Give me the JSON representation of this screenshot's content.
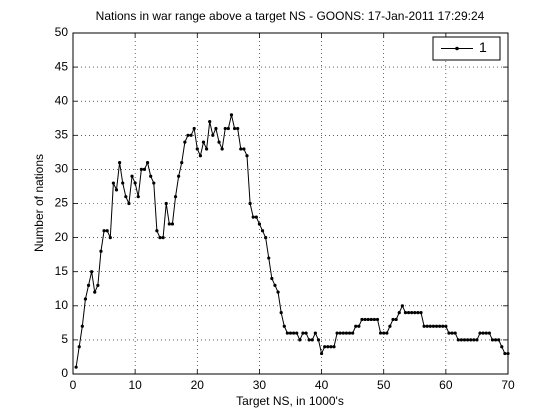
{
  "chart_data": {
    "type": "line",
    "title": "Nations in war range above a target NS - GOONS: 17-Jan-2011 17:29:24",
    "xlabel": "Target NS, in 1000's",
    "ylabel": "Number of nations",
    "x": [
      0.5,
      1,
      1.5,
      2,
      2.5,
      3,
      3.5,
      4,
      4.5,
      5,
      5.5,
      6,
      6.5,
      7,
      7.5,
      8,
      8.5,
      9,
      9.5,
      10,
      10.5,
      11,
      11.5,
      12,
      12.5,
      13,
      13.5,
      14,
      14.5,
      15,
      15.5,
      16,
      16.5,
      17,
      17.5,
      18,
      18.5,
      19,
      19.5,
      20,
      20.5,
      21,
      21.5,
      22,
      22.5,
      23,
      23.5,
      24,
      24.5,
      25,
      25.5,
      26,
      26.5,
      27,
      27.5,
      28,
      28.5,
      29,
      29.5,
      30,
      30.5,
      31,
      31.5,
      32,
      32.5,
      33,
      33.5,
      34,
      34.5,
      35,
      35.5,
      36,
      36.5,
      37,
      37.5,
      38,
      38.5,
      39,
      39.5,
      40,
      40.5,
      41,
      41.5,
      42,
      42.5,
      43,
      43.5,
      44,
      44.5,
      45,
      45.5,
      46,
      46.5,
      47,
      47.5,
      48,
      48.5,
      49,
      49.5,
      50,
      50.5,
      51,
      51.5,
      52,
      52.5,
      53,
      53.5,
      54,
      54.5,
      55,
      55.5,
      56,
      56.5,
      57,
      57.5,
      58,
      58.5,
      59,
      59.5,
      60,
      60.5,
      61,
      61.5,
      62,
      62.5,
      63,
      63.5,
      64,
      64.5,
      65,
      65.5,
      66,
      66.5,
      67,
      67.5,
      68,
      68.5,
      69,
      69.5,
      70
    ],
    "series": [
      {
        "name": "1",
        "color": "#000000",
        "values": [
          1,
          4,
          7,
          11,
          13,
          15,
          12,
          13,
          18,
          21,
          21,
          20,
          28,
          27,
          31,
          28,
          26,
          25,
          29,
          28,
          26,
          30,
          30,
          31,
          29,
          28,
          21,
          20,
          20,
          25,
          22,
          22,
          26,
          29,
          31,
          34,
          35,
          35,
          36,
          33,
          32,
          34,
          33,
          37,
          35,
          36,
          34,
          33,
          36,
          36,
          38,
          36,
          36,
          33,
          33,
          32,
          25,
          23,
          23,
          22,
          21,
          20,
          17,
          14,
          13,
          12,
          9,
          7,
          6,
          6,
          6,
          6,
          5,
          6,
          6,
          5,
          5,
          6,
          5,
          3,
          4,
          4,
          4,
          4,
          6,
          6,
          6,
          6,
          6,
          6,
          7,
          7,
          8,
          8,
          8,
          8,
          8,
          8,
          6,
          6,
          6,
          7,
          8,
          8,
          9,
          10,
          9,
          9,
          9,
          9,
          9,
          9,
          7,
          7,
          7,
          7,
          7,
          7,
          7,
          7,
          6,
          6,
          6,
          5,
          5,
          5,
          5,
          5,
          5,
          5,
          6,
          6,
          6,
          6,
          5,
          5,
          5,
          4,
          3,
          3
        ]
      }
    ],
    "xlim": [
      0,
      70
    ],
    "xticks": [
      0,
      10,
      20,
      30,
      40,
      50,
      60,
      70
    ],
    "ylim": [
      0,
      50
    ],
    "yticks": [
      0,
      5,
      10,
      15,
      20,
      25,
      30,
      35,
      40,
      45,
      50
    ],
    "grid": true,
    "legend": "northeast"
  }
}
